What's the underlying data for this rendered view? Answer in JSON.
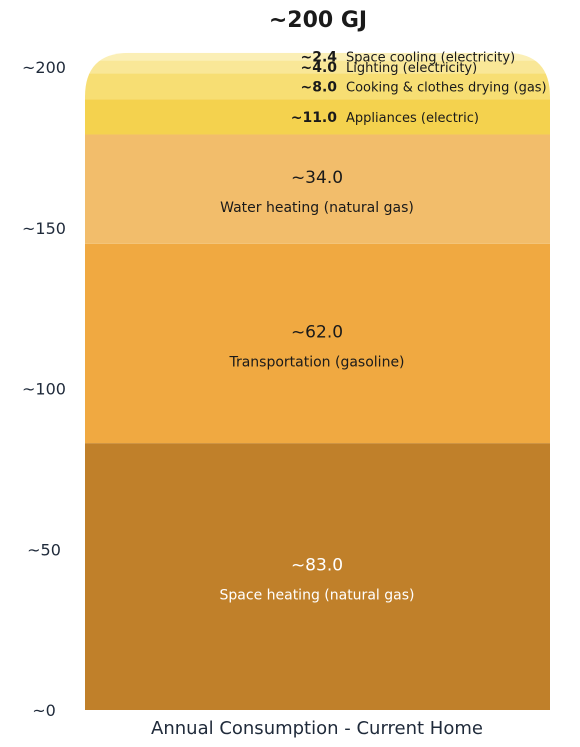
{
  "chart_data": {
    "type": "bar",
    "stacked": true,
    "title": "~200 GJ",
    "xlabel": "Annual Consumption - Current Home",
    "ylabel": "",
    "ylim": [
      0,
      200
    ],
    "yticks": [
      {
        "value": 0,
        "label": "~0"
      },
      {
        "value": 50,
        "label": "~50"
      },
      {
        "value": 100,
        "label": "~100"
      },
      {
        "value": 150,
        "label": "~150"
      },
      {
        "value": 200,
        "label": "~200"
      }
    ],
    "segments": [
      {
        "name": "Space heating (natural gas)",
        "value": 83.0,
        "label": "~83.0",
        "color": "#c0802a",
        "text_color": "#ffffff"
      },
      {
        "name": "Transportation (gasoline)",
        "value": 62.0,
        "label": "~62.0",
        "color": "#f0a941",
        "text_color": "#1a1a1a"
      },
      {
        "name": "Water heating (natural gas)",
        "value": 34.0,
        "label": "~34.0",
        "color": "#f2bd6b",
        "text_color": "#1a1a1a"
      },
      {
        "name": "Appliances (electric)",
        "value": 11.0,
        "label": "~11.0",
        "color": "#f4d24e",
        "text_color": "#1a1a1a"
      },
      {
        "name": "Cooking & clothes drying (gas)",
        "value": 8.0,
        "label": "~8.0",
        "color": "#f7de73",
        "text_color": "#1a1a1a"
      },
      {
        "name": "Lighting (electricity)",
        "value": 4.0,
        "label": "~4.0",
        "color": "#f9e797",
        "text_color": "#1a1a1a"
      },
      {
        "name": "Space cooling (electricity)",
        "value": 2.4,
        "label": "~2.4",
        "color": "#fbefb6",
        "text_color": "#1a1a1a"
      }
    ]
  }
}
